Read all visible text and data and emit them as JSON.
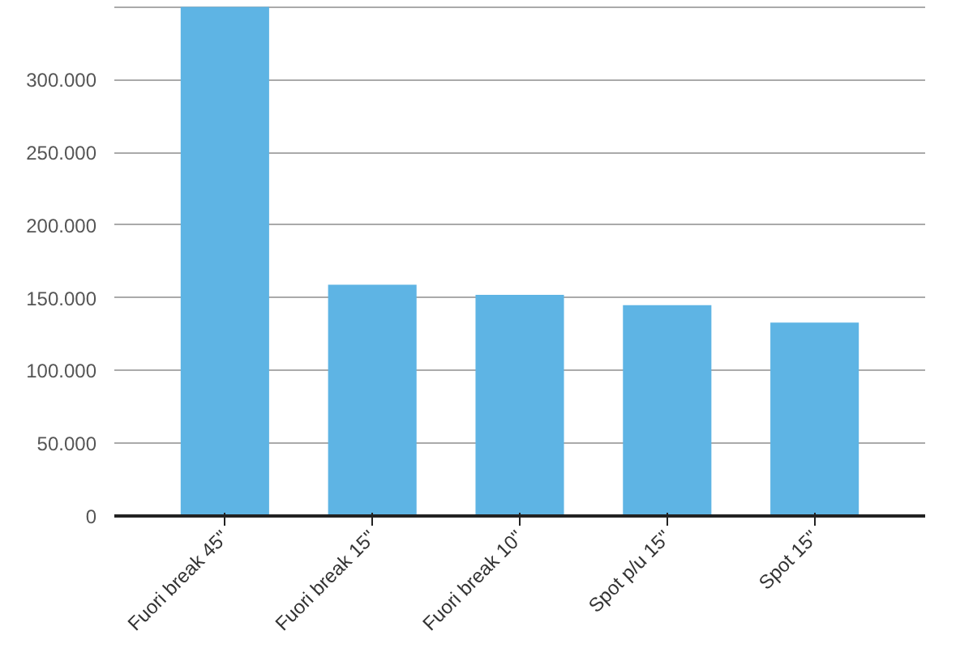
{
  "chart_data": {
    "type": "bar",
    "categories": [
      "Fuori break 45\"",
      "Fuori break 15\"",
      "Fuori break 10\"",
      "Spot p/u 15\"",
      "Spot 15\""
    ],
    "values": [
      350000,
      159000,
      152000,
      145000,
      133000
    ],
    "color": "#5eb4e4",
    "ylim": [
      0,
      352000
    ],
    "yticks": [
      0,
      {
        "value": 50000,
        "label": "50.000"
      },
      {
        "value": 100000,
        "label": "100.000"
      },
      {
        "value": 150000,
        "label": "150.000"
      },
      {
        "value": 200000,
        "label": "200.000"
      },
      {
        "value": 250000,
        "label": "250.000"
      },
      {
        "value": 300000,
        "label": "300.000"
      },
      {
        "value": 350000,
        "label": null
      }
    ],
    "grid": "y"
  }
}
